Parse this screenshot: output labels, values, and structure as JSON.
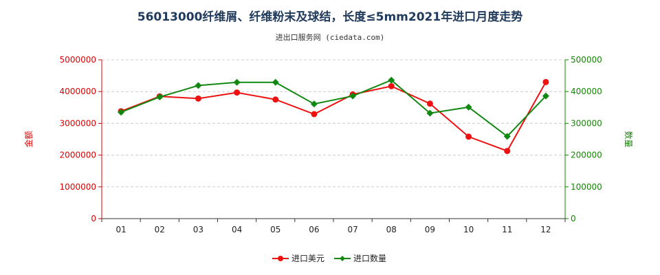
{
  "colors": {
    "left_axis": "#dd0000",
    "right_axis": "#118800",
    "series_usd": "#ee1111",
    "series_qty": "#118811",
    "grid": "#cccccc",
    "title": "#1f3a5a"
  },
  "chart_data": {
    "type": "line",
    "title": "56013000纤维屑、纤维粉末及球结，长度≤5mm2021年进口月度走势",
    "subtitle": "进出口服务网 (ciedata.com)",
    "categories": [
      "01",
      "02",
      "03",
      "04",
      "05",
      "06",
      "07",
      "08",
      "09",
      "10",
      "11",
      "12"
    ],
    "y_left": {
      "label": "金额",
      "ylim": [
        0,
        5000000
      ],
      "ticks": [
        "0",
        "1000000",
        "2000000",
        "3000000",
        "4000000",
        "5000000"
      ]
    },
    "y_right": {
      "label": "数量",
      "ylim": [
        0,
        500000
      ],
      "ticks": [
        "0",
        "100000",
        "200000",
        "300000",
        "400000",
        "500000"
      ]
    },
    "grid": "horizontal dashed",
    "legend_position": "bottom",
    "series": [
      {
        "name": "进口美元",
        "axis": "left",
        "marker": "circle",
        "values": [
          3380000,
          3850000,
          3780000,
          3970000,
          3750000,
          3290000,
          3910000,
          4170000,
          3620000,
          2580000,
          2130000,
          4300000
        ]
      },
      {
        "name": "进口数量",
        "axis": "right",
        "marker": "diamond",
        "values": [
          335000,
          383000,
          419000,
          429000,
          429000,
          361000,
          386000,
          436000,
          332000,
          351000,
          259000,
          386000
        ]
      }
    ]
  }
}
